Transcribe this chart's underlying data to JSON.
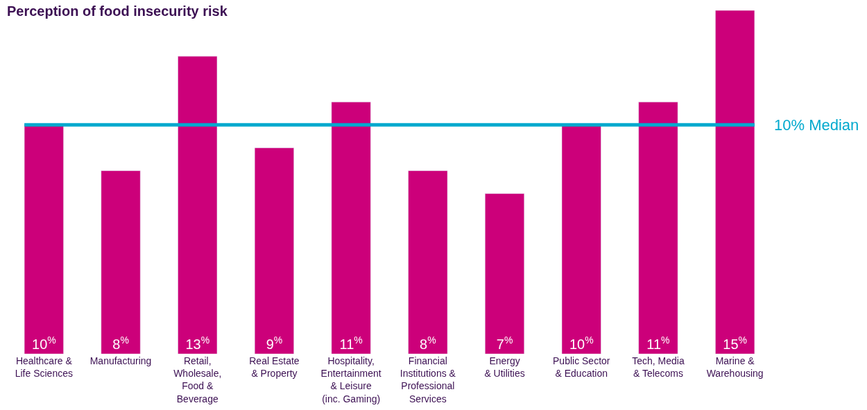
{
  "chart_data": {
    "type": "bar",
    "title": "Perception of food insecurity risk",
    "categories": [
      "Healthcare &\nLife Sciences",
      "Manufacturing",
      "Retail,\nWholesale,\nFood &\nBeverage",
      "Real Estate\n& Property",
      "Hospitality,\nEntertainment\n& Leisure\n(inc. Gaming)",
      "Financial\nInstitutions &\nProfessional\nServices",
      "Energy\n& Utilities",
      "Public Sector\n& Education",
      "Tech, Media\n& Telecoms",
      "Marine &\nWarehousing"
    ],
    "values": [
      10,
      8,
      13,
      9,
      11,
      8,
      7,
      10,
      11,
      15
    ],
    "value_labels": [
      "10$^{%}$",
      "8$^{%}$",
      "13$^{%}$",
      "9$^{%}$",
      "11$^{%}$",
      "8$^{%}$",
      "7$^{%}$",
      "10$^{%}$",
      "11$^{%}$",
      "15$^{%}$"
    ],
    "color": "#cc007a",
    "ref_lines": [
      {
        "axis": "y",
        "value": 10,
        "label": "10% Median",
        "color": "#00a9ce"
      }
    ],
    "tick_labels": "x"
  }
}
